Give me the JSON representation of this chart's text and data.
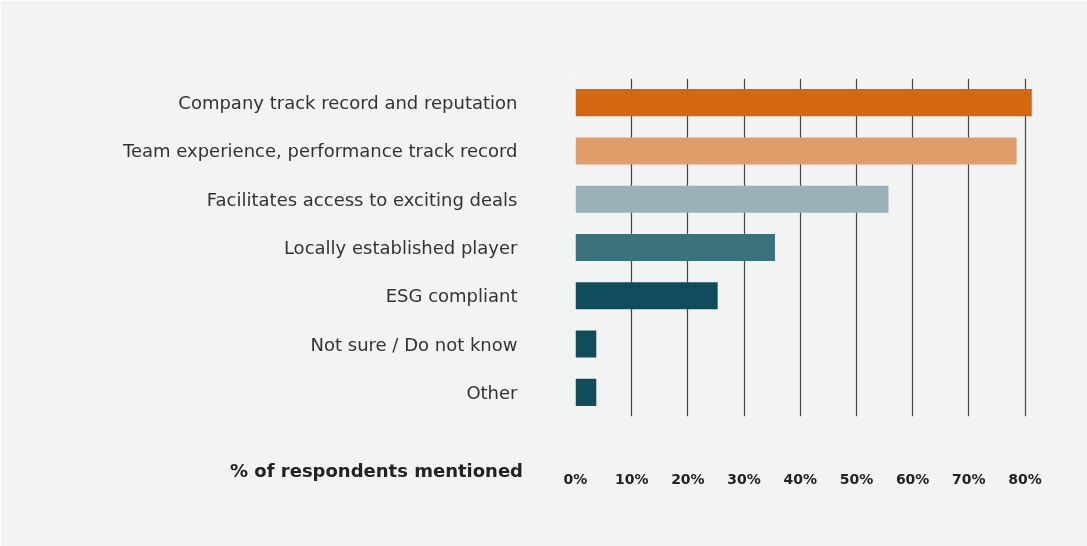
{
  "chart_data": {
    "type": "bar",
    "orientation": "horizontal",
    "xlabel": "% of respondents mentioned",
    "categories": [
      "Company track record and reputation",
      "Team experience, performance track record",
      "Facilitates access to exciting deals",
      "Locally established player",
      "ESG compliant",
      "Not sure / Do not know",
      "Other"
    ],
    "values": [
      81.2,
      78.5,
      55.7,
      35.5,
      25.3,
      3.7,
      3.7
    ],
    "colors": [
      "#d4670f",
      "#e09d69",
      "#98b2b8",
      "#3b717c",
      "#0f4c5c",
      "#0f4c5c",
      "#0f4c5c"
    ],
    "xlim": [
      0,
      84
    ],
    "xticks": [
      {
        "value": 0,
        "label": "0%"
      },
      {
        "value": 10,
        "label": "10%"
      },
      {
        "value": 20,
        "label": "20%"
      },
      {
        "value": 30,
        "label": "30%"
      },
      {
        "value": 40,
        "label": "40%"
      },
      {
        "value": 50,
        "label": "50%"
      },
      {
        "value": 60,
        "label": "60%"
      },
      {
        "value": 70,
        "label": "70%"
      },
      {
        "value": 80,
        "label": "80%"
      }
    ],
    "grid": "x"
  }
}
